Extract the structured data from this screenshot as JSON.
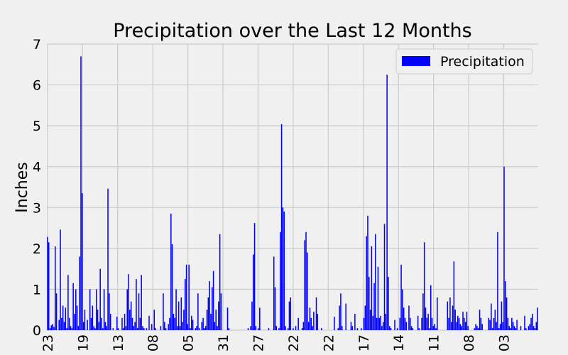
{
  "chart_data": {
    "type": "bar",
    "title": "Precipitation over the Last 12 Months",
    "xlabel": "",
    "ylabel": "Inches",
    "ylim": [
      0,
      7
    ],
    "yticks": [
      0,
      1,
      2,
      3,
      4,
      5,
      6,
      7
    ],
    "grid": true,
    "legend_position": "top-right",
    "bar_color": "#0000ff",
    "series": [
      {
        "name": "Precipitation",
        "values": [
          2.28,
          2.15,
          0.05,
          0.12,
          0.15,
          0.08,
          2.05,
          0.9,
          0.0,
          0.25,
          2.46,
          0.3,
          0.6,
          0.2,
          0.55,
          0.05,
          1.35,
          0.3,
          0.1,
          0.05,
          1.15,
          0.4,
          1.0,
          0.6,
          0.1,
          1.8,
          6.7,
          3.35,
          0.2,
          0.5,
          0.0,
          0.25,
          0.0,
          1.0,
          0.3,
          0.6,
          0.1,
          0.05,
          1.0,
          0.5,
          0.2,
          1.5,
          0.3,
          0.05,
          1.0,
          0.2,
          0.1,
          3.46,
          0.9,
          0.4,
          0.0,
          0.05,
          0.0,
          0.0,
          0.33,
          0.05,
          0.0,
          0.0,
          0.3,
          0.05,
          0.4,
          0.1,
          1.0,
          1.37,
          0.5,
          0.7,
          0.3,
          0.1,
          0.2,
          1.25,
          0.05,
          0.9,
          0.3,
          1.35,
          0.1,
          0.05,
          0.0,
          0.05,
          0.0,
          0.35,
          0.0,
          0.15,
          0.0,
          0.5,
          0.05,
          0.0,
          0.0,
          0.0,
          0.1,
          0.0,
          0.9,
          0.2,
          0.05,
          0.0,
          0.15,
          0.3,
          2.85,
          2.1,
          0.4,
          0.3,
          1.0,
          0.1,
          0.7,
          0.1,
          0.8,
          0.2,
          0.5,
          1.25,
          1.6,
          0.15,
          1.6,
          0.05,
          0.35,
          0.25,
          0.0,
          0.05,
          0.1,
          0.9,
          0.05,
          0.0,
          0.2,
          0.3,
          0.05,
          0.1,
          0.5,
          0.8,
          1.2,
          0.4,
          1.05,
          1.45,
          0.2,
          0.5,
          0.1,
          0.7,
          2.35,
          0.9,
          0.0,
          0.0,
          0.0,
          0.0,
          0.55,
          0.05,
          0.0,
          0.0,
          0.0,
          0.0,
          0.0,
          0.0,
          0.0,
          0.0,
          0.0,
          0.0,
          0.0,
          0.0,
          0.0,
          0.0,
          0.05,
          0.0,
          0.1,
          0.7,
          1.85,
          2.62,
          0.1,
          0.0,
          0.05,
          0.55,
          0.0,
          0.0,
          0.0,
          0.0,
          0.0,
          0.0,
          0.05,
          0.0,
          0.0,
          0.0,
          1.8,
          1.05,
          0.1,
          0.0,
          0.05,
          2.4,
          5.04,
          3.0,
          2.9,
          0.1,
          0.0,
          0.05,
          0.7,
          0.8,
          0.0,
          0.05,
          0.0,
          0.1,
          0.0,
          0.3,
          0.0,
          0.0,
          0.05,
          0.2,
          2.2,
          2.4,
          1.9,
          0.2,
          0.55,
          0.3,
          0.1,
          0.45,
          0.0,
          0.8,
          0.4,
          0.0,
          0.0,
          0.05,
          0.0,
          0.0,
          0.0,
          0.0,
          0.0,
          0.0,
          0.0,
          0.0,
          0.0,
          0.33,
          0.0,
          0.0,
          0.05,
          0.6,
          0.9,
          0.1,
          0.0,
          0.0,
          0.65,
          0.0,
          0.0,
          0.0,
          0.2,
          0.1,
          0.0,
          0.4,
          0.0,
          0.05,
          0.0,
          0.0,
          0.05,
          0.0,
          0.3,
          0.6,
          2.3,
          2.8,
          1.3,
          0.5,
          2.05,
          0.35,
          1.15,
          2.35,
          0.3,
          1.55,
          0.3,
          0.35,
          0.1,
          0.2,
          2.6,
          0.4,
          6.25,
          1.3,
          0.1,
          0.05,
          0.0,
          0.0,
          0.25,
          0.0,
          0.05,
          0.0,
          0.3,
          1.6,
          1.0,
          0.55,
          0.3,
          0.2,
          0.0,
          0.6,
          0.3,
          0.1,
          0.05,
          0.0,
          0.0,
          0.0,
          0.35,
          0.05,
          0.0,
          0.3,
          0.9,
          2.15,
          0.55,
          0.3,
          0.4,
          0.05,
          1.1,
          0.3,
          0.1,
          0.15,
          0.05,
          0.8,
          0.0,
          0.0,
          0.0,
          0.0,
          0.0,
          0.0,
          0.0,
          0.7,
          0.3,
          0.8,
          0.2,
          0.6,
          1.68,
          0.5,
          0.2,
          0.35,
          0.3,
          0.15,
          0.1,
          0.45,
          0.3,
          0.2,
          0.45,
          0.1,
          0.0,
          0.0,
          0.0,
          0.0,
          0.05,
          0.15,
          0.1,
          0.05,
          0.5,
          0.3,
          0.15,
          0.0,
          0.0,
          0.0,
          0.0,
          0.3,
          0.25,
          0.65,
          0.05,
          0.3,
          0.5,
          0.2,
          2.4,
          0.05,
          0.15,
          0.7,
          0.2,
          4.0,
          1.2,
          0.8,
          0.3,
          0.1,
          0.05,
          0.3,
          0.2,
          0.1,
          0.05,
          0.25,
          0.0,
          0.0,
          0.1,
          0.0,
          0.0,
          0.35,
          0.05,
          0.0,
          0.1,
          0.15,
          0.3,
          0.4,
          0.1,
          0.05,
          0.2,
          0.55
        ]
      }
    ],
    "x_tick_labels": [
      "23",
      "19",
      "13",
      "08",
      "05",
      "31",
      "27",
      "22",
      "22",
      "17",
      "14",
      "11",
      "08",
      "03"
    ]
  }
}
